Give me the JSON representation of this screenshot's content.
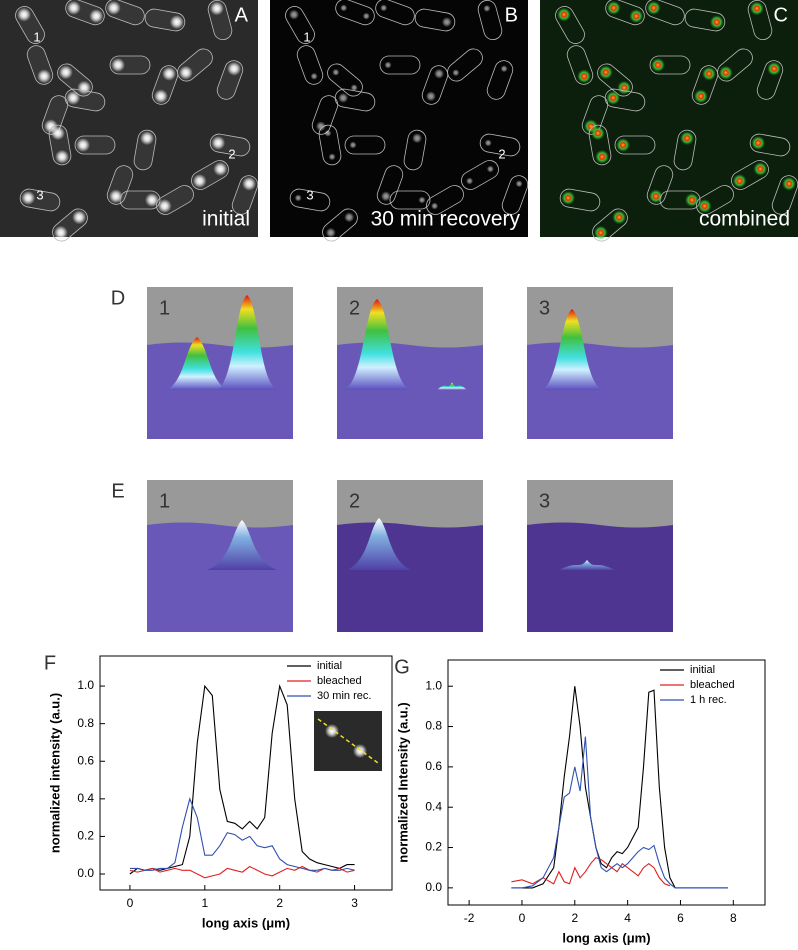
{
  "panels": {
    "top": [
      {
        "letter": "A",
        "caption": "initial",
        "labels": [
          "1",
          "2",
          "3"
        ]
      },
      {
        "letter": "B",
        "caption": "30 min recovery",
        "labels": [
          "1",
          "2",
          "3"
        ]
      },
      {
        "letter": "C",
        "caption": "combined"
      }
    ],
    "surface_rows": [
      {
        "letter": "D",
        "labels": [
          "1",
          "2",
          "3"
        ]
      },
      {
        "letter": "E",
        "labels": [
          "1",
          "2",
          "3"
        ]
      }
    ]
  },
  "chart_data": [
    {
      "type": "line",
      "panel_label": "F",
      "xlabel": "long axis (μm)",
      "ylabel": "normalized  intensity (a.u.)",
      "xlim": [
        -0.4,
        3.5
      ],
      "ylim": [
        -0.085,
        1.16
      ],
      "xticks": [
        0,
        1,
        2,
        3
      ],
      "yticks": [
        {
          "value": 0,
          "label": "0.0"
        },
        {
          "value": 0.2,
          "label": "0.2"
        },
        {
          "value": 0.4,
          "label": "0.4"
        },
        {
          "value": 0.6,
          "label": "0.6"
        },
        {
          "value": 0.8,
          "label": "0.8"
        },
        {
          "value": 1,
          "label": "1.0"
        }
      ],
      "legend": "upper right",
      "x": [
        0,
        0.1,
        0.2,
        0.3,
        0.4,
        0.5,
        0.6,
        0.7,
        0.8,
        0.9,
        1.0,
        1.1,
        1.2,
        1.3,
        1.4,
        1.5,
        1.6,
        1.7,
        1.8,
        1.9,
        2.0,
        2.1,
        2.2,
        2.3,
        2.4,
        2.5,
        2.6,
        2.7,
        2.8,
        2.9,
        3.0
      ],
      "series": [
        {
          "name": "initial",
          "color": "#000000",
          "values": [
            0,
            0.03,
            0.02,
            0.03,
            0.02,
            0.03,
            0.04,
            0.05,
            0.2,
            0.7,
            1.0,
            0.95,
            0.45,
            0.28,
            0.27,
            0.24,
            0.28,
            0.24,
            0.3,
            0.75,
            1.0,
            0.9,
            0.4,
            0.12,
            0.08,
            0.06,
            0.05,
            0.04,
            0.03,
            0.05,
            0.05
          ]
        },
        {
          "name": "bleached",
          "color": "#e02020",
          "values": [
            0.02,
            0.01,
            0.02,
            0.03,
            0.01,
            0.02,
            0.03,
            0.02,
            0.02,
            0.0,
            -0.02,
            -0.01,
            0.0,
            0.03,
            0.02,
            0.01,
            0.04,
            0.02,
            0.0,
            -0.01,
            0.01,
            0.03,
            0.02,
            0.04,
            0.02,
            0.01,
            0.03,
            0.02,
            0.03,
            0.01,
            0.02
          ]
        },
        {
          "name": "30 min rec.",
          "color": "#3050b0",
          "values": [
            0.03,
            0.03,
            0.02,
            0.02,
            0.03,
            0.03,
            0.06,
            0.25,
            0.4,
            0.3,
            0.1,
            0.1,
            0.15,
            0.22,
            0.21,
            0.18,
            0.2,
            0.15,
            0.14,
            0.15,
            0.08,
            0.05,
            0.04,
            0.03,
            0.02,
            0.02,
            0.03,
            0.02,
            0.02,
            0.03,
            0.02
          ]
        }
      ]
    },
    {
      "type": "line",
      "panel_label": "G",
      "xlabel": "long axis (μm)",
      "ylabel": "normalized Intensity (a.u.)",
      "xlim": [
        -2.8,
        9.2
      ],
      "ylim": [
        -0.085,
        1.13
      ],
      "xticks": [
        -2,
        0,
        2,
        4,
        6,
        8
      ],
      "yticks": [
        {
          "value": 0,
          "label": "0.0"
        },
        {
          "value": 0.2,
          "label": "0.2"
        },
        {
          "value": 0.4,
          "label": "0.4"
        },
        {
          "value": 0.6,
          "label": "0.6"
        },
        {
          "value": 0.8,
          "label": "0.8"
        },
        {
          "value": 1,
          "label": "1.0"
        }
      ],
      "legend": "upper right",
      "x": [
        -0.4,
        0,
        0.4,
        0.8,
        1.2,
        1.4,
        1.6,
        1.8,
        2.0,
        2.2,
        2.4,
        2.6,
        2.8,
        3.0,
        3.2,
        3.4,
        3.6,
        3.8,
        4.0,
        4.2,
        4.4,
        4.6,
        4.8,
        5.0,
        5.2,
        5.4,
        5.6,
        5.8,
        6.0,
        6.4,
        7.0,
        7.8
      ],
      "series": [
        {
          "name": "initial",
          "color": "#000000",
          "values": [
            0,
            0,
            0,
            0.02,
            0.1,
            0.3,
            0.55,
            0.75,
            1.0,
            0.8,
            0.5,
            0.35,
            0.2,
            0.12,
            0.1,
            0.15,
            0.18,
            0.17,
            0.2,
            0.25,
            0.3,
            0.6,
            0.97,
            0.98,
            0.5,
            0.2,
            0.05,
            0,
            0,
            0,
            0,
            0
          ]
        },
        {
          "name": "bleached",
          "color": "#e02020",
          "values": [
            0.03,
            0.04,
            0.02,
            0.05,
            0.02,
            0.08,
            0.03,
            0.02,
            0.1,
            0.05,
            0.08,
            0.12,
            0.15,
            0.14,
            0.12,
            0.1,
            0.08,
            0.12,
            0.1,
            0.08,
            0.06,
            0.1,
            0.12,
            0.1,
            0.05,
            0.02,
            0.01,
            null,
            null,
            null,
            null,
            null
          ]
        },
        {
          "name": "1 h  rec.",
          "color": "#3050b0",
          "values": [
            0,
            0,
            0.01,
            0.05,
            0.15,
            0.3,
            0.45,
            0.47,
            0.6,
            0.48,
            0.75,
            0.35,
            0.2,
            0.1,
            0.08,
            0.1,
            0.12,
            0.1,
            0.12,
            0.15,
            0.18,
            0.2,
            0.19,
            0.21,
            0.12,
            0.05,
            0.02,
            0,
            0,
            0,
            0,
            0
          ]
        }
      ]
    }
  ]
}
